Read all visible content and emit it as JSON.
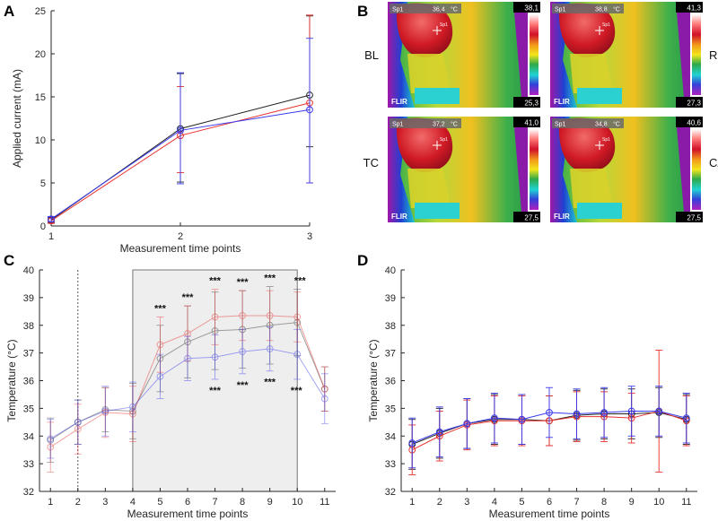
{
  "panels": {
    "A": {
      "letter": "A"
    },
    "B": {
      "letter": "B"
    },
    "C": {
      "letter": "C"
    },
    "D": {
      "letter": "D"
    }
  },
  "thermal": {
    "brand": "FLIR",
    "spot_label": "Sp1",
    "spot_marker": "Sp1",
    "images": [
      {
        "key": "BL",
        "label": "BL",
        "spot_value": "36,4",
        "unit": "°C",
        "scale_max": "38,1",
        "scale_min": "25,3"
      },
      {
        "key": "RL",
        "label": "RL",
        "spot_value": "38,8",
        "unit": "°C",
        "scale_max": "41,3",
        "scale_min": "27,3"
      },
      {
        "key": "TC",
        "label": "TC",
        "spot_value": "37,2",
        "unit": "°C",
        "scale_max": "41,0",
        "scale_min": "27,5"
      },
      {
        "key": "CA",
        "label": "CA",
        "spot_value": "34,8",
        "unit": "°C",
        "scale_max": "40,6",
        "scale_min": "27,5"
      }
    ]
  },
  "chart_data": [
    {
      "id": "A",
      "type": "line",
      "title": "",
      "xlabel": "Measurement time points",
      "ylabel": "Applied current (mA)",
      "x": [
        1,
        2,
        3
      ],
      "xticks": [
        "1",
        "2",
        "3"
      ],
      "xlim": [
        1,
        3
      ],
      "ylim": [
        0,
        25
      ],
      "yticks": [
        0,
        5,
        10,
        15,
        20,
        25
      ],
      "series": [
        {
          "name": "black",
          "color": "#222222",
          "values": [
            0.7,
            11.3,
            15.2
          ],
          "err_low": [
            0.3,
            6.2,
            6.0
          ],
          "err_high": [
            0.3,
            6.4,
            9.2
          ]
        },
        {
          "name": "red",
          "color": "#e8312f",
          "values": [
            0.6,
            10.5,
            14.3
          ],
          "err_low": [
            0.3,
            4.3,
            9.3
          ],
          "err_high": [
            0.3,
            5.7,
            10.2
          ]
        },
        {
          "name": "blue",
          "color": "#3a3aee",
          "values": [
            0.8,
            11.1,
            13.5
          ],
          "err_low": [
            0.3,
            6.2,
            8.5
          ],
          "err_high": [
            0.3,
            6.7,
            8.3
          ]
        }
      ]
    },
    {
      "id": "C",
      "type": "line",
      "xlabel": "Measurement time points",
      "ylabel": "Temperature (°C)",
      "x": [
        1,
        2,
        3,
        4,
        5,
        6,
        7,
        8,
        9,
        10,
        11
      ],
      "xticks": [
        "1",
        "2",
        "3",
        "4",
        "5",
        "6",
        "7",
        "8",
        "9",
        "10",
        "11"
      ],
      "xlim": [
        0.6,
        11.4
      ],
      "ylim": [
        32,
        40
      ],
      "yticks": [
        32,
        33,
        34,
        35,
        36,
        37,
        38,
        39,
        40
      ],
      "shaded_region": [
        4,
        10
      ],
      "dashed_vline": 2,
      "series": [
        {
          "name": "gray",
          "color": "#555555",
          "values": [
            33.85,
            34.5,
            34.95,
            34.9,
            36.8,
            37.4,
            37.8,
            37.85,
            38.0,
            38.1,
            35.7
          ],
          "err": [
            0.8,
            0.8,
            0.8,
            1.0,
            1.2,
            1.3,
            1.4,
            1.4,
            1.4,
            1.2,
            0.8
          ]
        },
        {
          "name": "red",
          "color": "#e8312f",
          "values": [
            33.6,
            34.25,
            34.85,
            34.8,
            37.3,
            37.7,
            38.3,
            38.35,
            38.35,
            38.3,
            35.7
          ],
          "err": [
            0.9,
            0.9,
            0.9,
            1.0,
            1.0,
            1.0,
            1.0,
            0.9,
            0.9,
            0.9,
            0.8
          ]
        },
        {
          "name": "blue",
          "color": "#3a3aee",
          "values": [
            33.9,
            34.5,
            34.9,
            35.05,
            36.15,
            36.8,
            36.85,
            37.05,
            37.15,
            36.95,
            35.35
          ],
          "err": [
            0.7,
            0.8,
            0.9,
            0.9,
            0.8,
            0.8,
            0.8,
            0.8,
            0.8,
            0.9,
            0.9
          ]
        }
      ],
      "significance_top": [
        {
          "x": 5,
          "label": "***"
        },
        {
          "x": 6,
          "label": "***"
        },
        {
          "x": 7,
          "label": "***"
        },
        {
          "x": 8,
          "label": "***"
        },
        {
          "x": 9,
          "label": "***"
        },
        {
          "x": 10,
          "label": "***"
        }
      ],
      "significance_bottom": [
        {
          "x": 7,
          "label": "***"
        },
        {
          "x": 8,
          "label": "***"
        },
        {
          "x": 9,
          "label": "***"
        },
        {
          "x": 10,
          "label": "***"
        }
      ]
    },
    {
      "id": "D",
      "type": "line",
      "xlabel": "Measurement time points",
      "ylabel": "Temperature (°C)",
      "x": [
        1,
        2,
        3,
        4,
        5,
        6,
        7,
        8,
        9,
        10,
        11
      ],
      "xticks": [
        "1",
        "2",
        "3",
        "4",
        "5",
        "6",
        "7",
        "8",
        "9",
        "10",
        "11"
      ],
      "xlim": [
        0.6,
        11.4
      ],
      "ylim": [
        32,
        40
      ],
      "yticks": [
        32,
        33,
        34,
        35,
        36,
        37,
        38,
        39,
        40
      ],
      "series": [
        {
          "name": "black",
          "color": "#222222",
          "values": [
            33.7,
            34.1,
            34.45,
            34.6,
            34.6,
            34.55,
            34.75,
            34.8,
            34.8,
            34.85,
            34.6
          ],
          "err": [
            0.9,
            0.9,
            0.9,
            0.9,
            0.9,
            0.9,
            0.9,
            0.9,
            0.9,
            0.9,
            0.9
          ]
        },
        {
          "name": "red",
          "color": "#e8312f",
          "values": [
            33.5,
            34.0,
            34.4,
            34.55,
            34.55,
            34.55,
            34.7,
            34.7,
            34.65,
            34.9,
            34.55
          ],
          "err": [
            0.9,
            0.9,
            0.9,
            0.9,
            0.9,
            0.9,
            0.9,
            0.9,
            0.9,
            2.2,
            0.9
          ]
        },
        {
          "name": "blue",
          "color": "#3a3aee",
          "values": [
            33.75,
            34.15,
            34.45,
            34.65,
            34.6,
            34.85,
            34.8,
            34.85,
            34.9,
            34.9,
            34.65
          ],
          "err": [
            0.9,
            0.9,
            0.9,
            0.9,
            0.9,
            0.9,
            0.9,
            0.9,
            0.9,
            0.9,
            0.9
          ]
        }
      ]
    }
  ]
}
